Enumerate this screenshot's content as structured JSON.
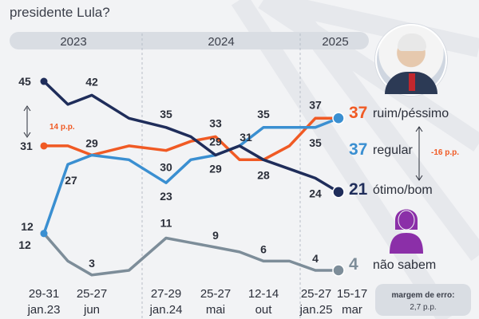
{
  "header": {
    "question_line": "presidente Lula?"
  },
  "years": [
    "2023",
    "2024",
    "2025"
  ],
  "colors": {
    "ruim": "#f05a24",
    "regular": "#3a8fd1",
    "otimo": "#1f2d5a",
    "nao_sabem": "#7d8d99",
    "fem": "#8b2fa8",
    "bracket": "#f05a24"
  },
  "photo_icon": "portrait-lula",
  "fem_icon": "woman-icon",
  "chart_data": {
    "type": "line",
    "x": [
      "29-31 jan.23",
      "25-27 jun",
      "27-29 jan.24",
      "25-27 mai",
      "12-14 out",
      "25-27 jan.25",
      "15-17 mar"
    ],
    "x_labels": [
      {
        "line1": "29-31",
        "line2": "jan.23"
      },
      {
        "line1": "25-27",
        "line2": "jun"
      },
      {
        "line1": "27-29",
        "line2": "jan.24"
      },
      {
        "line1": "25-27",
        "line2": "mai"
      },
      {
        "line1": "12-14",
        "line2": "out"
      },
      {
        "line1": "25-27",
        "line2": "jan.25"
      },
      {
        "line1": "15-17",
        "line2": "mar"
      }
    ],
    "ylim": [
      0,
      50
    ],
    "series": [
      {
        "key": "ruim",
        "name": "ruim/péssimo",
        "points": [
          [
            0,
            31
          ],
          [
            0.5,
            31
          ],
          [
            1,
            29
          ],
          [
            1.5,
            31
          ],
          [
            2,
            30
          ],
          [
            2.5,
            32
          ],
          [
            3,
            33
          ],
          [
            3.5,
            28
          ],
          [
            4,
            28
          ],
          [
            4.5,
            31
          ],
          [
            5,
            37
          ],
          [
            6,
            37
          ]
        ],
        "labels": [
          {
            "i": 0,
            "text": "31"
          },
          {
            "i": 2,
            "text": "29"
          },
          {
            "i": 4,
            "text": "30"
          },
          {
            "i": 6,
            "text": "33"
          },
          {
            "i": 10,
            "text": "37"
          }
        ],
        "end": "37"
      },
      {
        "key": "regular",
        "name": "regular",
        "points": [
          [
            0,
            12
          ],
          [
            0.5,
            27
          ],
          [
            1,
            29
          ],
          [
            1.5,
            28
          ],
          [
            2,
            23
          ],
          [
            2.5,
            28
          ],
          [
            3,
            29
          ],
          [
            3.5,
            31
          ],
          [
            4,
            35
          ],
          [
            4.5,
            35
          ],
          [
            5,
            35
          ],
          [
            6,
            37
          ]
        ],
        "labels": [
          {
            "i": 1,
            "text": "27"
          },
          {
            "i": 4,
            "text": "23"
          },
          {
            "i": 6,
            "text": "29"
          },
          {
            "i": 8,
            "text": "35"
          },
          {
            "i": 10,
            "text": "35"
          }
        ],
        "end": "37"
      },
      {
        "key": "otimo",
        "name": "ótimo/bom",
        "points": [
          [
            0,
            45
          ],
          [
            0.5,
            40
          ],
          [
            1,
            42
          ],
          [
            1.5,
            37
          ],
          [
            2,
            35
          ],
          [
            2.5,
            33
          ],
          [
            3,
            29
          ],
          [
            3.5,
            31
          ],
          [
            4,
            28
          ],
          [
            4.5,
            26
          ],
          [
            5,
            24
          ],
          [
            6,
            21
          ]
        ],
        "labels": [
          {
            "i": 0,
            "text": "45"
          },
          {
            "i": 2,
            "text": "42"
          },
          {
            "i": 4,
            "text": "35"
          },
          {
            "i": 6,
            "text": "29"
          },
          {
            "i": 7,
            "text": "31"
          },
          {
            "i": 8,
            "text": "28"
          },
          {
            "i": 10,
            "text": "24"
          }
        ],
        "end": "21"
      },
      {
        "key": "nao_sabem",
        "name": "não sabem",
        "points": [
          [
            0,
            12
          ],
          [
            0.5,
            6
          ],
          [
            1,
            3
          ],
          [
            1.5,
            4
          ],
          [
            2,
            11
          ],
          [
            2.5,
            10
          ],
          [
            3,
            9
          ],
          [
            3.5,
            8
          ],
          [
            4,
            6
          ],
          [
            4.5,
            6
          ],
          [
            5,
            4
          ],
          [
            6,
            4
          ]
        ],
        "labels": [
          {
            "i": 0,
            "text": "12"
          },
          {
            "i": 2,
            "text": "3"
          },
          {
            "i": 4,
            "text": "11"
          },
          {
            "i": 6,
            "text": "9"
          },
          {
            "i": 8,
            "text": "6"
          },
          {
            "i": 10,
            "text": "4"
          }
        ],
        "end": "4"
      }
    ],
    "annotations": {
      "left_gap": "14 p.p.",
      "right_gap": "-16 p.p.",
      "margin_label": "margem de erro:",
      "margin_value": "2,7 p.p."
    }
  }
}
